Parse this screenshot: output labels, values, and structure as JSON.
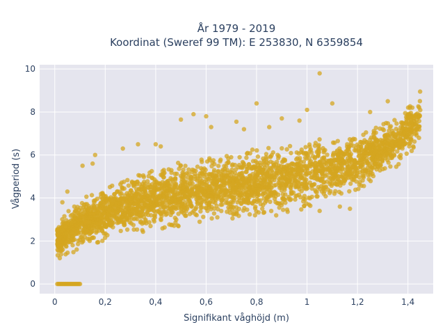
{
  "chart_data": {
    "type": "scatter",
    "title_lines": [
      "År 1979 - 2019",
      "Koordinat (Sweref 99 TM): E 253830, N 6359854"
    ],
    "xlabel": "Signifikant våghöjd (m)",
    "ylabel": "Vågperiod (s)",
    "xlim": [
      -0.06,
      1.5
    ],
    "ylim": [
      -0.45,
      10.2
    ],
    "x_ticks": [
      0,
      0.2,
      0.4,
      0.6,
      0.8,
      1,
      1.2,
      1.4
    ],
    "x_tick_labels": [
      "0",
      "0,2",
      "0,4",
      "0,6",
      "0,8",
      "1",
      "1,2",
      "1,4"
    ],
    "y_ticks": [
      0,
      2,
      4,
      6,
      8,
      10
    ],
    "y_tick_labels": [
      "0",
      "2",
      "4",
      "6",
      "8",
      "10"
    ],
    "grid": true,
    "marker_color": "#d4a520",
    "background_color": "#e5e5ee",
    "band": {
      "x": [
        0.01,
        0.05,
        0.1,
        0.2,
        0.3,
        0.4,
        0.5,
        0.6,
        0.7,
        0.8,
        0.9,
        1.0,
        1.1,
        1.2,
        1.3,
        1.35,
        1.4,
        1.45
      ],
      "y_low": [
        1.2,
        1.3,
        1.6,
        2.0,
        2.3,
        2.5,
        2.7,
        2.85,
        3.0,
        3.1,
        3.2,
        3.5,
        4.0,
        4.4,
        5.0,
        5.4,
        6.0,
        6.6
      ],
      "y_high": [
        3.0,
        3.4,
        4.0,
        4.5,
        5.0,
        5.4,
        5.7,
        5.9,
        6.1,
        6.3,
        6.5,
        6.7,
        6.9,
        7.1,
        7.5,
        7.8,
        8.3,
        9.0
      ]
    },
    "zero_cluster": {
      "x_min": 0.01,
      "x_max": 0.1,
      "y": 0
    },
    "outliers": [
      {
        "x": 1.05,
        "y": 9.8
      },
      {
        "x": 0.8,
        "y": 8.4
      },
      {
        "x": 0.55,
        "y": 7.9
      },
      {
        "x": 0.6,
        "y": 7.8
      },
      {
        "x": 0.5,
        "y": 7.65
      },
      {
        "x": 0.72,
        "y": 7.55
      },
      {
        "x": 0.9,
        "y": 7.7
      },
      {
        "x": 1.1,
        "y": 8.4
      },
      {
        "x": 1.25,
        "y": 8.0
      },
      {
        "x": 1.32,
        "y": 8.5
      },
      {
        "x": 0.75,
        "y": 7.2
      },
      {
        "x": 0.62,
        "y": 7.3
      },
      {
        "x": 0.4,
        "y": 6.5
      },
      {
        "x": 0.27,
        "y": 6.3
      },
      {
        "x": 0.16,
        "y": 6.0
      },
      {
        "x": 0.15,
        "y": 5.6
      },
      {
        "x": 0.11,
        "y": 5.5
      },
      {
        "x": 0.05,
        "y": 4.3
      },
      {
        "x": 0.03,
        "y": 3.8
      },
      {
        "x": 0.02,
        "y": 1.2
      },
      {
        "x": 0.97,
        "y": 7.6
      },
      {
        "x": 1.0,
        "y": 8.1
      },
      {
        "x": 0.85,
        "y": 7.3
      },
      {
        "x": 1.17,
        "y": 3.5
      },
      {
        "x": 1.13,
        "y": 3.6
      },
      {
        "x": 1.05,
        "y": 3.4
      },
      {
        "x": 0.42,
        "y": 6.4
      },
      {
        "x": 0.33,
        "y": 6.5
      }
    ]
  }
}
